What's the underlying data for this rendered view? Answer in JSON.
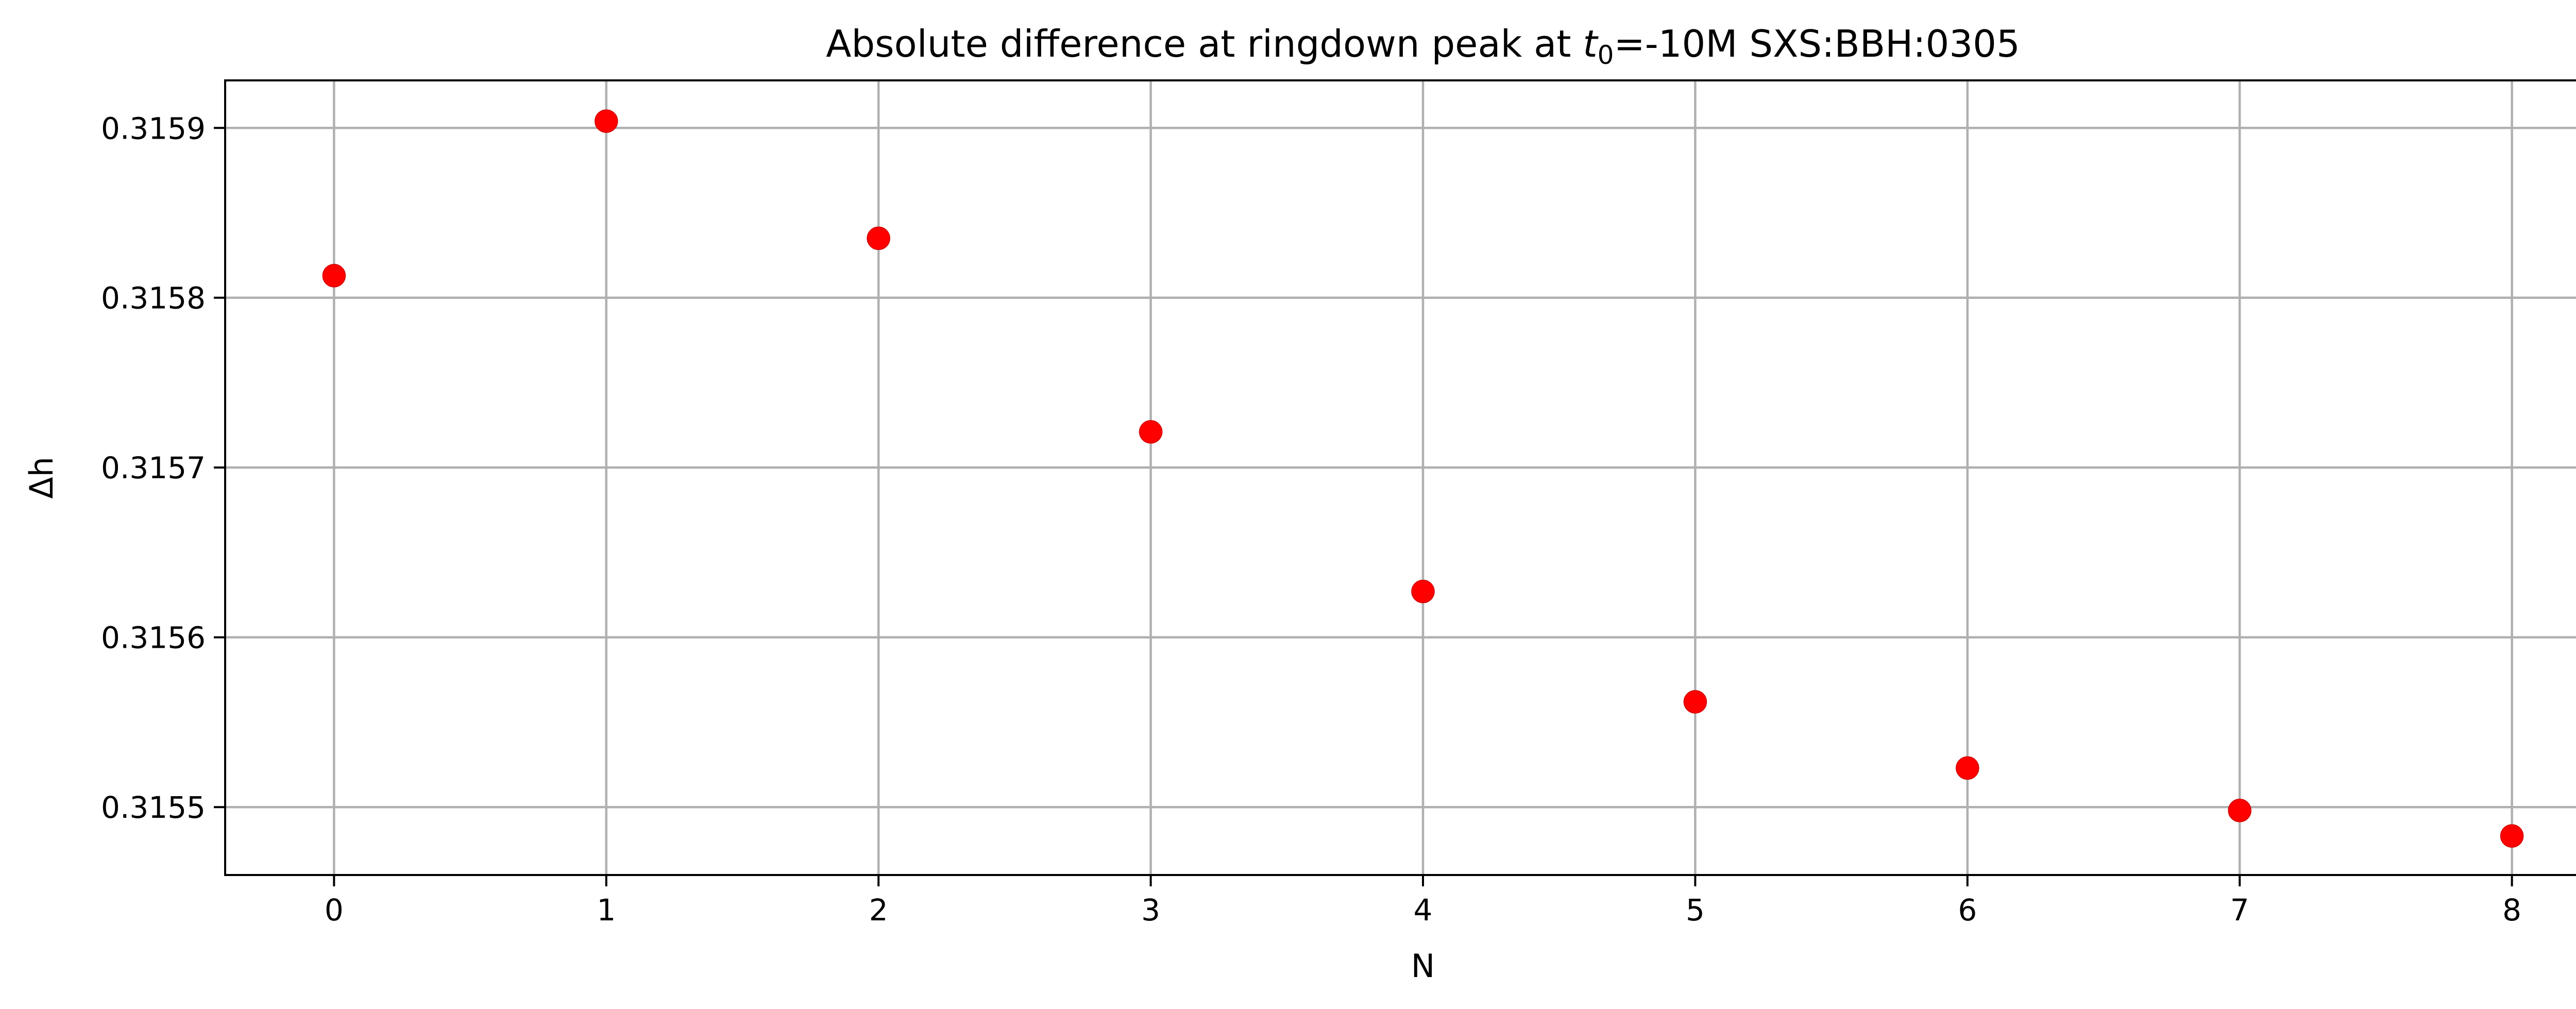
{
  "chart_data": {
    "type": "scatter",
    "title": {
      "prefix": "Absolute difference at ringdown peak at ",
      "var": "t",
      "sub": "0",
      "suffix": "=-10M SXS:BBH:0305"
    },
    "xlabel": "N",
    "ylabel": "Δh",
    "x": [
      0,
      1,
      2,
      3,
      4,
      5,
      6,
      7,
      8
    ],
    "y": [
      0.315813,
      0.315904,
      0.315835,
      0.315721,
      0.315627,
      0.315562,
      0.315523,
      0.315498,
      0.315483
    ],
    "xlim": [
      -0.4,
      8.4
    ],
    "ylim": [
      0.31546,
      0.315928
    ],
    "xticks": [
      0,
      1,
      2,
      3,
      4,
      5,
      6,
      7,
      8
    ],
    "xtick_labels": [
      "0",
      "1",
      "2",
      "3",
      "4",
      "5",
      "6",
      "7",
      "8"
    ],
    "yticks": [
      0.3155,
      0.3156,
      0.3157,
      0.3158,
      0.3159
    ],
    "ytick_labels": [
      "0.3155",
      "0.3156",
      "0.3157",
      "0.3158",
      "0.3159"
    ],
    "grid": true,
    "marker_color": "#ff0000"
  }
}
